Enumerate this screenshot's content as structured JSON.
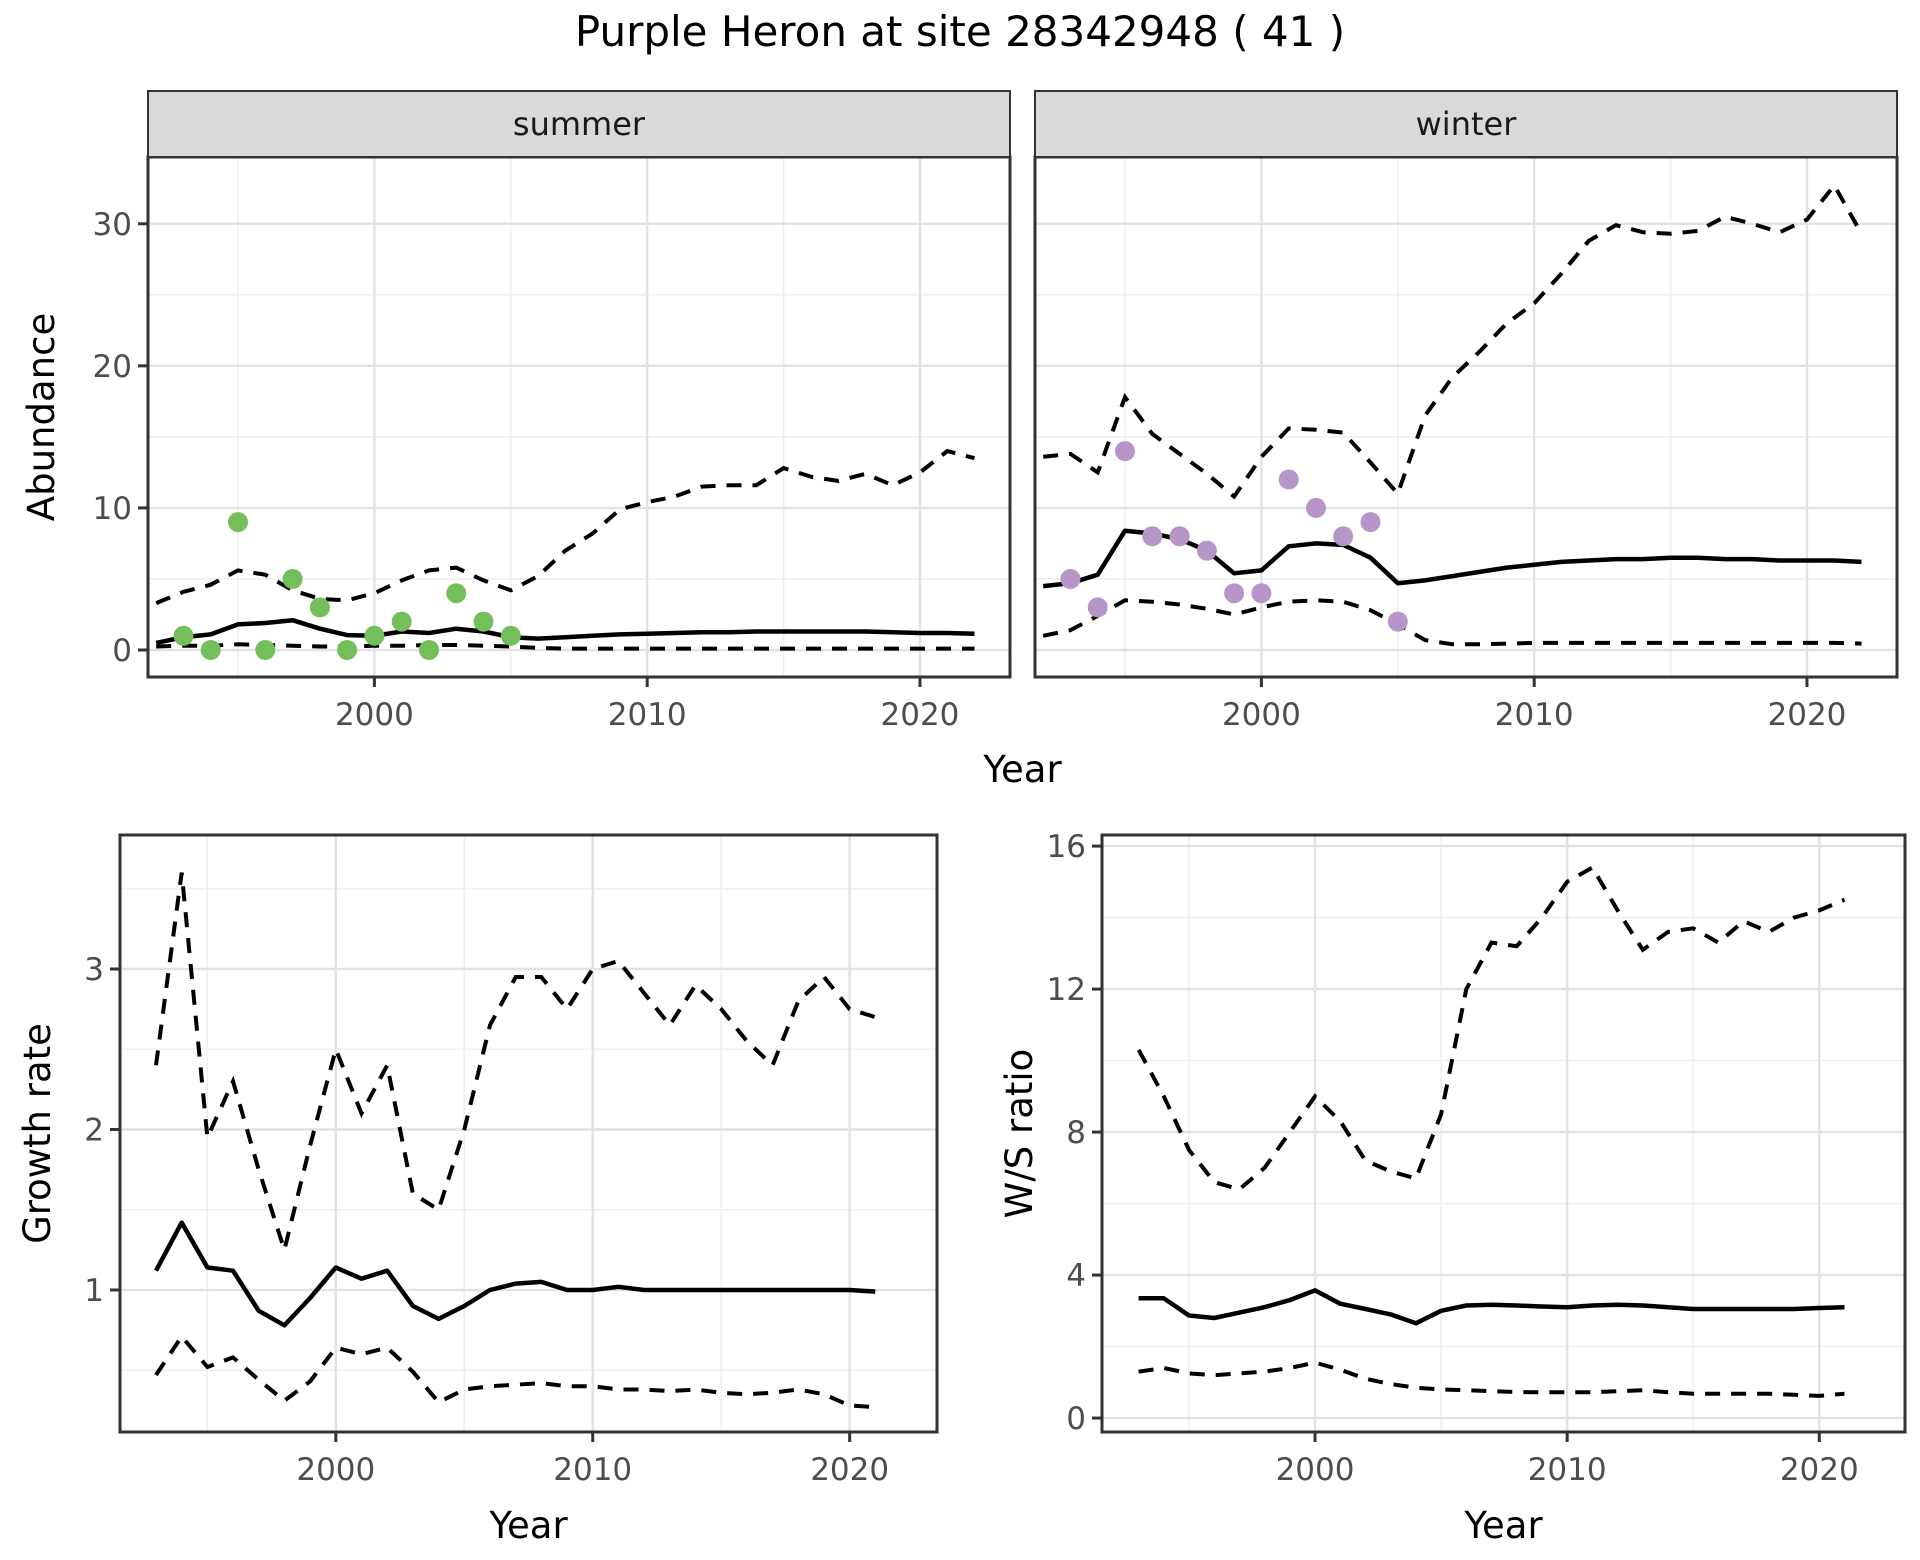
{
  "title": "Purple Heron at site 28342948 ( 41 )",
  "colors": {
    "summer_points": "#74bf5c",
    "winter_points": "#b795c8",
    "line": "#000000",
    "tick_text": "#4d4d4d",
    "axis_title_text": "#000000",
    "strip_text": "#1a1a1a",
    "strip_bg": "#d9d9d9",
    "strip_border": "#333333",
    "panel_border": "#333333",
    "panel_bg": "#ffffff",
    "grid_major": "#e2e2e2",
    "grid_minor": "#efefef"
  },
  "chart_data": {
    "type": "line",
    "title": "Purple Heron at site 28342948 ( 41 )",
    "legend": "none",
    "grid": "major+minor",
    "dash_styles": {
      "median": "solid",
      "upper": "dashed",
      "lower": "dashed"
    },
    "top_row": {
      "xlabel": "Year",
      "ylabel": "Abundance",
      "facets": [
        {
          "id": "summer",
          "label": "summer",
          "xlim": [
            1991.7,
            2023.3
          ],
          "ylim": [
            -1.9,
            34.7
          ],
          "xticks": [
            2000,
            2010,
            2020
          ],
          "xminor": [
            1995,
            2005,
            2015
          ],
          "yticks": [
            0,
            10,
            20,
            30
          ],
          "yminor": [
            5,
            15,
            25
          ],
          "show_y_labels": true,
          "lines": {
            "year_start": 1992,
            "median": [
              0.5,
              0.9,
              1.1,
              1.8,
              1.9,
              2.1,
              1.5,
              1.05,
              1.0,
              1.3,
              1.2,
              1.5,
              1.3,
              0.9,
              0.8,
              0.9,
              1.0,
              1.1,
              1.15,
              1.2,
              1.25,
              1.25,
              1.3,
              1.3,
              1.3,
              1.3,
              1.3,
              1.25,
              1.2,
              1.2,
              1.15
            ],
            "upper": [
              3.3,
              4.1,
              4.6,
              5.6,
              5.3,
              4.2,
              3.6,
              3.5,
              4.0,
              4.9,
              5.6,
              5.8,
              4.9,
              4.2,
              5.2,
              7.0,
              8.2,
              9.9,
              10.4,
              10.8,
              11.5,
              11.6,
              11.6,
              12.8,
              12.2,
              11.9,
              12.4,
              11.6,
              12.5,
              14.0,
              13.5
            ],
            "lower": [
              0.25,
              0.3,
              0.3,
              0.4,
              0.35,
              0.3,
              0.25,
              0.25,
              0.3,
              0.3,
              0.35,
              0.35,
              0.3,
              0.25,
              0.15,
              0.1,
              0.1,
              0.1,
              0.1,
              0.1,
              0.1,
              0.1,
              0.1,
              0.1,
              0.1,
              0.1,
              0.1,
              0.1,
              0.1,
              0.1,
              0.1
            ]
          },
          "points": {
            "year_start": 1993,
            "values": [
              1,
              0,
              9,
              0,
              5,
              3,
              0,
              1,
              2,
              0,
              4,
              2,
              1
            ],
            "color_key": "summer_points"
          }
        },
        {
          "id": "winter",
          "label": "winter",
          "xlim": [
            1991.7,
            2023.3
          ],
          "ylim": [
            -1.9,
            34.7
          ],
          "xticks": [
            2000,
            2010,
            2020
          ],
          "xminor": [
            1995,
            2005,
            2015
          ],
          "yticks": [
            0,
            10,
            20,
            30
          ],
          "yminor": [
            5,
            15,
            25
          ],
          "show_y_labels": false,
          "lines": {
            "year_start": 1992,
            "median": [
              4.5,
              4.7,
              5.3,
              8.4,
              8.2,
              7.8,
              7.0,
              5.4,
              5.6,
              7.3,
              7.5,
              7.4,
              6.5,
              4.7,
              4.9,
              5.2,
              5.5,
              5.8,
              6.0,
              6.2,
              6.3,
              6.4,
              6.4,
              6.5,
              6.5,
              6.4,
              6.4,
              6.3,
              6.3,
              6.3,
              6.2
            ],
            "upper": [
              13.6,
              13.8,
              12.5,
              17.8,
              15.2,
              13.8,
              12.4,
              10.8,
              13.6,
              15.6,
              15.5,
              15.3,
              13.2,
              11.0,
              16.5,
              19.2,
              21.0,
              23.0,
              24.4,
              26.5,
              28.8,
              29.9,
              29.4,
              29.3,
              29.5,
              30.5,
              30.0,
              29.4,
              30.3,
              32.7,
              29.3
            ],
            "lower": [
              1.0,
              1.4,
              2.4,
              3.5,
              3.4,
              3.2,
              2.9,
              2.5,
              3.0,
              3.4,
              3.5,
              3.4,
              2.8,
              1.8,
              0.7,
              0.4,
              0.4,
              0.45,
              0.5,
              0.5,
              0.5,
              0.5,
              0.5,
              0.5,
              0.5,
              0.5,
              0.5,
              0.5,
              0.5,
              0.5,
              0.45
            ],
            "lower_note": "dashed lower credible bound stays near 0 after 2006"
          },
          "points": {
            "year_start": 1993,
            "values": [
              5,
              3,
              14,
              8,
              8,
              7,
              4,
              4,
              12,
              10,
              8,
              9,
              2
            ],
            "color_key": "winter_points"
          }
        }
      ]
    },
    "bottom_row": [
      {
        "id": "growth",
        "ylabel": "Growth rate",
        "xlabel": "Year",
        "xlim": [
          1991.6,
          2023.4
        ],
        "ylim": [
          0.115,
          3.835
        ],
        "xticks": [
          2000,
          2010,
          2020
        ],
        "xminor": [
          1995,
          2005,
          2015
        ],
        "yticks": [
          1,
          2,
          3
        ],
        "yminor": [
          0.5,
          1.5,
          2.5,
          3.5
        ],
        "show_y_labels": true,
        "lines": {
          "year_start": 1993,
          "median": [
            1.12,
            1.42,
            1.14,
            1.12,
            0.87,
            0.78,
            0.95,
            1.14,
            1.07,
            1.12,
            0.9,
            0.82,
            0.9,
            1.0,
            1.04,
            1.05,
            1.0,
            1.0,
            1.02,
            1.0,
            1.0,
            1.0,
            1.0,
            1.0,
            1.0,
            1.0,
            1.0,
            1.0,
            0.99
          ],
          "upper": [
            2.4,
            3.6,
            1.95,
            2.3,
            1.75,
            1.25,
            1.9,
            2.5,
            2.1,
            2.4,
            1.6,
            1.5,
            2.0,
            2.65,
            2.95,
            2.95,
            2.75,
            3.0,
            3.05,
            2.85,
            2.65,
            2.9,
            2.75,
            2.55,
            2.4,
            2.8,
            2.95,
            2.75,
            2.7
          ],
          "lower": [
            0.47,
            0.71,
            0.52,
            0.58,
            0.44,
            0.31,
            0.43,
            0.64,
            0.6,
            0.64,
            0.49,
            0.3,
            0.38,
            0.4,
            0.41,
            0.42,
            0.4,
            0.4,
            0.38,
            0.38,
            0.37,
            0.38,
            0.36,
            0.35,
            0.36,
            0.38,
            0.35,
            0.28,
            0.27
          ]
        }
      },
      {
        "id": "ws",
        "ylabel": "W/S ratio",
        "xlabel": "Year",
        "xlim": [
          1991.55,
          2023.4
        ],
        "ylim": [
          -0.39,
          16.31
        ],
        "xticks": [
          2000,
          2010,
          2020
        ],
        "xminor": [
          1995,
          2005,
          2015
        ],
        "yticks": [
          0,
          4,
          8,
          12,
          16
        ],
        "yminor": [
          2,
          6,
          10,
          14
        ],
        "show_y_labels": true,
        "lines": {
          "year_start": 1993,
          "median": [
            3.35,
            3.35,
            2.87,
            2.8,
            2.95,
            3.1,
            3.3,
            3.57,
            3.2,
            3.05,
            2.9,
            2.65,
            3.0,
            3.15,
            3.17,
            3.15,
            3.12,
            3.1,
            3.15,
            3.17,
            3.15,
            3.1,
            3.05,
            3.05,
            3.05,
            3.05,
            3.05,
            3.08,
            3.1
          ],
          "upper": [
            10.3,
            9.0,
            7.5,
            6.6,
            6.4,
            7.0,
            8.0,
            9.0,
            8.3,
            7.2,
            6.9,
            6.7,
            8.5,
            12.0,
            13.3,
            13.2,
            14.0,
            15.0,
            15.4,
            14.2,
            13.1,
            13.6,
            13.7,
            13.3,
            13.9,
            13.6,
            14.0,
            14.2,
            14.5
          ],
          "lower": [
            1.3,
            1.4,
            1.25,
            1.2,
            1.25,
            1.3,
            1.4,
            1.55,
            1.35,
            1.1,
            0.95,
            0.85,
            0.8,
            0.78,
            0.75,
            0.73,
            0.72,
            0.72,
            0.72,
            0.75,
            0.78,
            0.72,
            0.68,
            0.68,
            0.68,
            0.68,
            0.65,
            0.62,
            0.68
          ]
        }
      }
    ]
  }
}
